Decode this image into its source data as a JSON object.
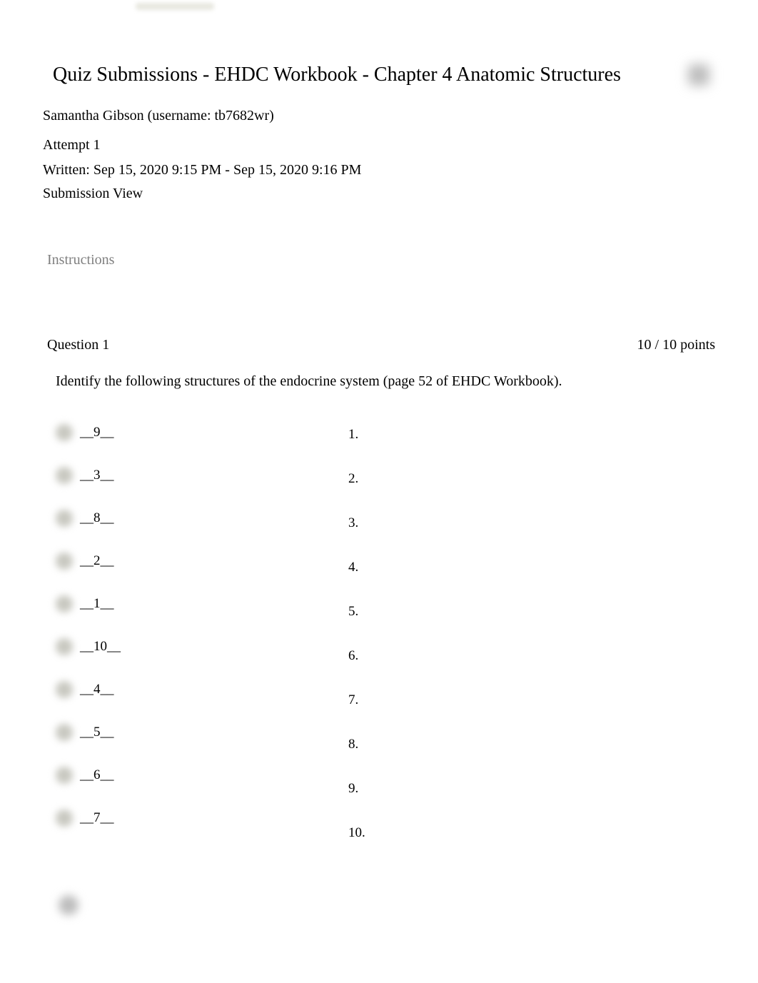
{
  "header": {
    "title": "Quiz Submissions - EHDC Workbook - Chapter 4 Anatomic Structures",
    "student_info": "Samantha Gibson (username: tb7682wr)",
    "attempt": "Attempt 1",
    "written": "Written: Sep 15, 2020 9:15 PM - Sep 15, 2020 9:16 PM",
    "submission_view": "Submission View"
  },
  "instructions_label": "Instructions",
  "question": {
    "label": "Question 1",
    "points": "10 / 10 points",
    "prompt": "Identify the following structures of the endocrine system (page 52 of EHDC Workbook)."
  },
  "answers": {
    "left": [
      "__9__",
      "__3__",
      "__8__",
      "__2__",
      "__1__",
      "__10__",
      "__4__",
      "__5__",
      "__6__",
      "__7__"
    ],
    "right": [
      "1.",
      "2.",
      "3.",
      "4.",
      "5.",
      "6.",
      "7.",
      "8.",
      "9.",
      "10."
    ]
  },
  "colors": {
    "text": "#000000",
    "muted": "#7f7f7f",
    "background": "#ffffff",
    "blur_gray": "#bdbdbd",
    "blur_light": "#c8c8c0"
  }
}
